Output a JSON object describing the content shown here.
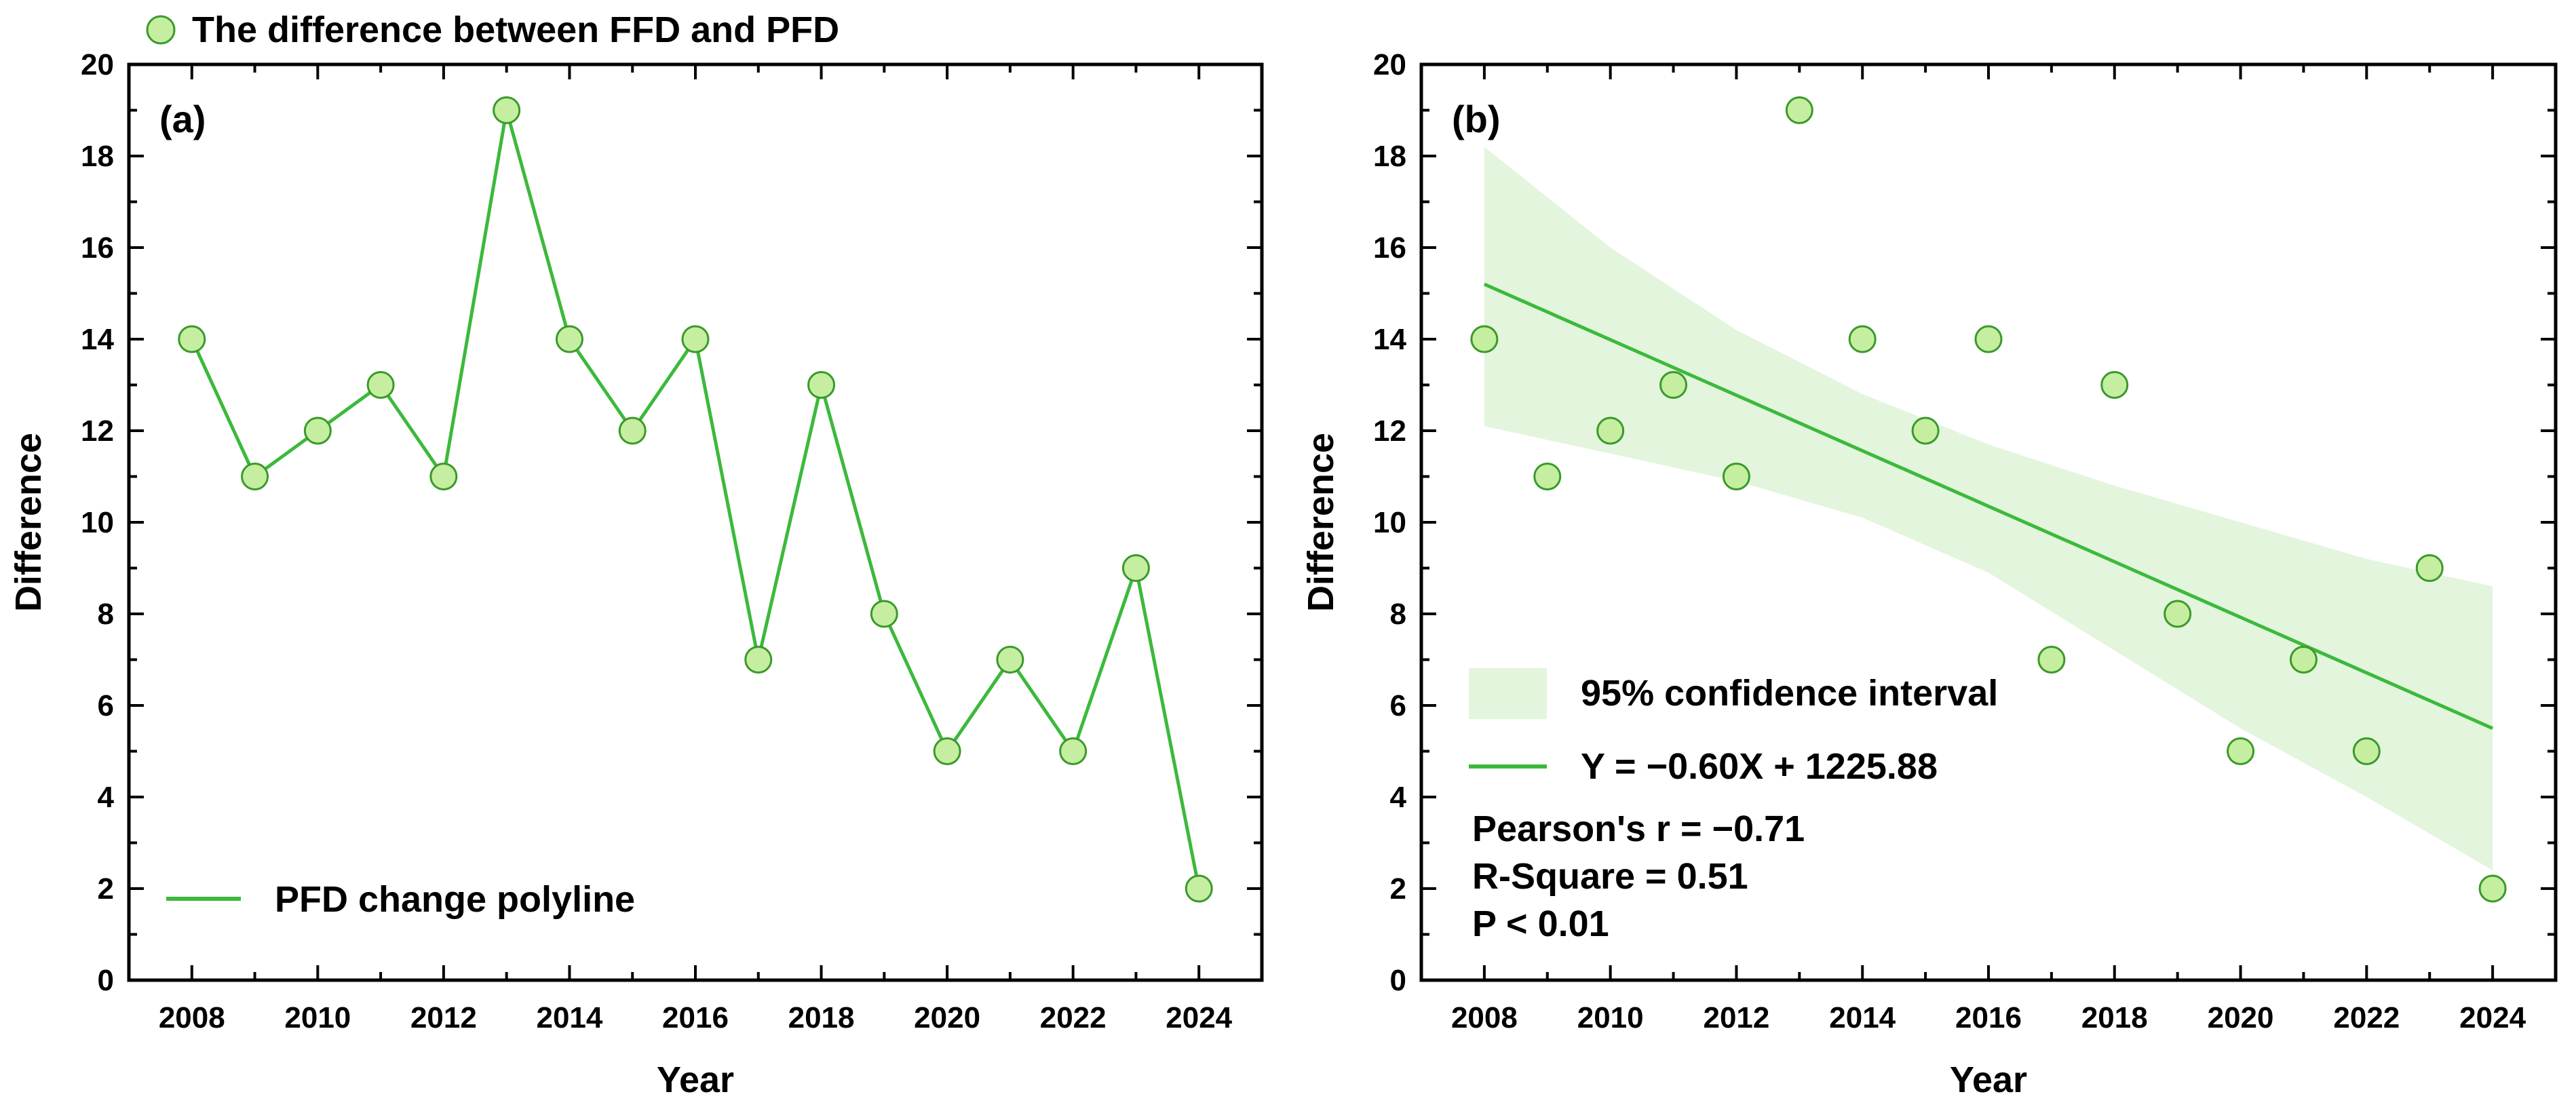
{
  "chart_data": [
    {
      "type": "line",
      "panel_label": "(a)",
      "xlabel": "Year",
      "ylabel": "Difference",
      "xlim": [
        2007,
        2025
      ],
      "ylim": [
        0,
        20
      ],
      "xticks": [
        2008,
        2010,
        2012,
        2014,
        2016,
        2018,
        2020,
        2022,
        2024
      ],
      "yticks": [
        0,
        2,
        4,
        6,
        8,
        10,
        12,
        14,
        16,
        18,
        20
      ],
      "grid": false,
      "legend_position": "bottom-left",
      "top_legend": "The difference between FFD and PFD",
      "line_legend": "PFD change polyline",
      "x": [
        2008,
        2009,
        2010,
        2011,
        2012,
        2013,
        2014,
        2015,
        2016,
        2017,
        2018,
        2019,
        2020,
        2021,
        2022,
        2023,
        2024
      ],
      "y": [
        14,
        11,
        12,
        13,
        11,
        19,
        14,
        12,
        14,
        7,
        13,
        8,
        5,
        7,
        5,
        9,
        2
      ],
      "colors": {
        "line": "#3cb93c",
        "marker_fill": "#c5eea0",
        "marker_edge": "#3a9a2a"
      }
    },
    {
      "type": "scatter",
      "panel_label": "(b)",
      "xlabel": "Year",
      "ylabel": "Difference",
      "xlim": [
        2007,
        2025
      ],
      "ylim": [
        0,
        20
      ],
      "xticks": [
        2008,
        2010,
        2012,
        2014,
        2016,
        2018,
        2020,
        2022,
        2024
      ],
      "yticks": [
        0,
        2,
        4,
        6,
        8,
        10,
        12,
        14,
        16,
        18,
        20
      ],
      "grid": false,
      "legend_position": "bottom-left",
      "x": [
        2008,
        2009,
        2010,
        2011,
        2012,
        2013,
        2014,
        2015,
        2016,
        2017,
        2018,
        2019,
        2020,
        2021,
        2022,
        2023,
        2024
      ],
      "y": [
        14,
        11,
        12,
        13,
        11,
        19,
        14,
        12,
        14,
        7,
        13,
        8,
        5,
        7,
        5,
        9,
        2
      ],
      "fit": {
        "slope": -0.6,
        "intercept": 1225.88,
        "y_start": 15.2,
        "y_end": 5.5,
        "label": "Y = −0.60X + 1225.88"
      },
      "ci_upper": [
        [
          2008,
          18.2
        ],
        [
          2010,
          16.0
        ],
        [
          2012,
          14.2
        ],
        [
          2014,
          12.8
        ],
        [
          2016,
          11.7
        ],
        [
          2018,
          10.8
        ],
        [
          2020,
          10.0
        ],
        [
          2022,
          9.2
        ],
        [
          2024,
          8.6
        ]
      ],
      "ci_lower": [
        [
          2008,
          12.1
        ],
        [
          2010,
          11.5
        ],
        [
          2012,
          10.9
        ],
        [
          2014,
          10.1
        ],
        [
          2016,
          8.9
        ],
        [
          2018,
          7.2
        ],
        [
          2020,
          5.5
        ],
        [
          2022,
          4.0
        ],
        [
          2024,
          2.4
        ]
      ],
      "ci_label": "95% confidence interval",
      "stats": [
        "Pearson's r = −0.71",
        "R-Square = 0.51",
        "P < 0.01"
      ],
      "colors": {
        "line": "#3cb93c",
        "band": "#e3f5dc",
        "marker_fill": "#c5eea0",
        "marker_edge": "#3a9a2a"
      }
    }
  ]
}
